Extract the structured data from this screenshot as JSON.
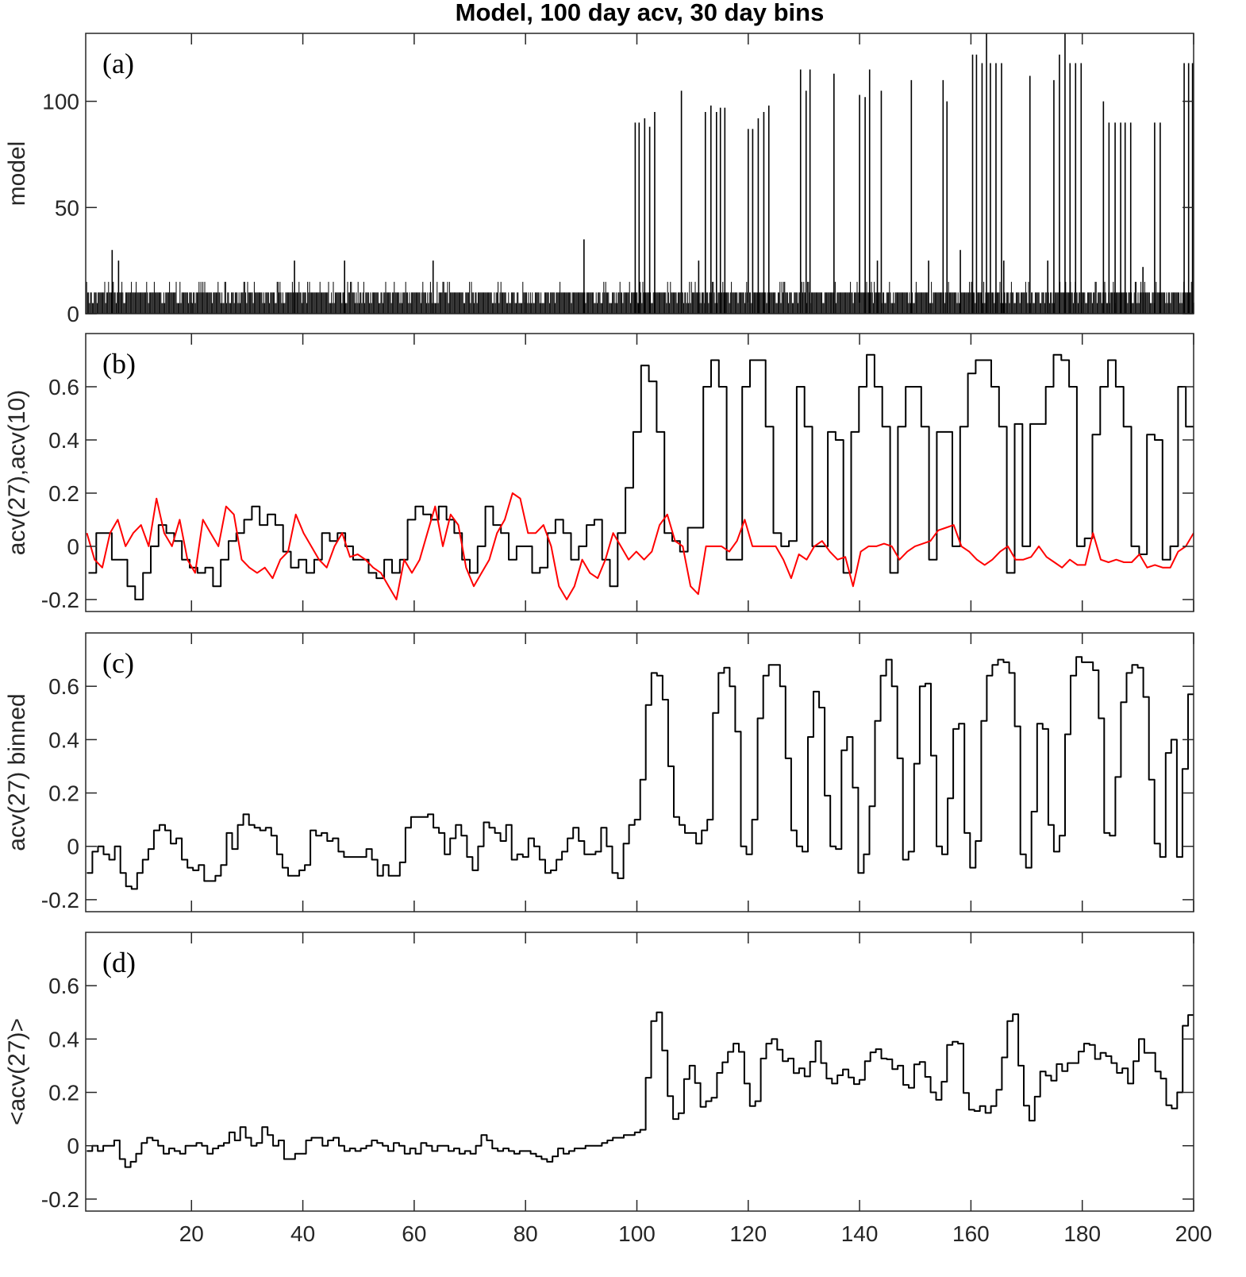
{
  "title": "Model, 100 day acv, 30 day bins",
  "colors": {
    "black": "#000000",
    "red": "#ff0000",
    "axis": "#262626"
  },
  "chart_data": [
    {
      "type": "line",
      "panel_label": "(a)",
      "ylabel": "model",
      "xlim": [
        1,
        200
      ],
      "ylim": [
        0,
        132
      ],
      "yticks": [
        0,
        50,
        100
      ],
      "xticks": [
        20,
        40,
        60,
        80,
        100,
        120,
        140,
        160,
        180,
        200
      ],
      "show_xtick_labels": false,
      "baseline_levels": [
        5,
        10,
        15
      ],
      "spikes": {
        "x": [
          5.75,
          6.9,
          38.5,
          47.5,
          63.4,
          90.5,
          99.7,
          100.4,
          101.4,
          102.3,
          103.2,
          108.0,
          111.1,
          112.3,
          113.3,
          114.3,
          115.0,
          115.8,
          120.0,
          120.8,
          121.8,
          122.8,
          123.7,
          129.4,
          130.4,
          131.1,
          135.4,
          140.0,
          141.0,
          141.8,
          143.2,
          143.9,
          149.3,
          152.4,
          155.0,
          155.7,
          158.1,
          160.3,
          161.0,
          162.0,
          162.8,
          163.5,
          164.5,
          165.5,
          165.9,
          170.6,
          173.8,
          174.9,
          175.9,
          176.9,
          177.8,
          178.8,
          179.8,
          183.8,
          184.8,
          185.9,
          186.9,
          187.7,
          188.7,
          190.9,
          193.0,
          194.0,
          198.3,
          199.1,
          199.8
        ],
        "y": [
          30,
          25,
          25,
          25,
          25,
          35,
          90,
          90,
          92,
          88,
          95,
          105,
          25,
          95,
          98,
          95,
          97,
          97,
          87,
          87,
          92,
          95,
          98,
          115,
          105,
          115,
          113,
          103,
          102,
          115,
          25,
          105,
          110,
          25,
          110,
          100,
          30,
          122,
          122,
          118,
          133,
          118,
          118,
          118,
          25,
          112,
          25,
          110,
          122,
          133,
          118,
          118,
          118,
          100,
          90,
          90,
          90,
          90,
          90,
          22,
          90,
          90,
          118,
          118,
          118
        ]
      }
    },
    {
      "type": "line",
      "panel_label": "(b)",
      "ylabel": "acv(27),acv(10)",
      "xlim": [
        1,
        200
      ],
      "ylim": [
        -0.245,
        0.8
      ],
      "yticks": [
        -0.2,
        0,
        0.2,
        0.4,
        0.6
      ],
      "yticklabels": [
        "-0.2",
        "0",
        "0.2",
        "0.4",
        "0.6"
      ],
      "xticks": [
        20,
        40,
        60,
        80,
        100,
        120,
        140,
        160,
        180,
        200
      ],
      "show_xtick_labels": false,
      "series": [
        {
          "color": "#000000",
          "x_range": [
            1.5,
            200
          ],
          "values": [
            -0.1,
            0.05,
            0.05,
            -0.05,
            -0.05,
            -0.15,
            -0.2,
            -0.1,
            0.0,
            0.08,
            0.05,
            0.02,
            -0.05,
            -0.08,
            -0.1,
            -0.08,
            -0.15,
            -0.05,
            0.02,
            0.05,
            0.1,
            0.15,
            0.08,
            0.12,
            0.08,
            -0.02,
            -0.08,
            -0.05,
            -0.1,
            -0.05,
            0.05,
            0.02,
            0.05,
            0.0,
            -0.05,
            -0.05,
            -0.1,
            -0.12,
            -0.05,
            -0.1,
            -0.05,
            0.1,
            0.15,
            0.12,
            0.1,
            0.15,
            0.1,
            0.05,
            -0.05,
            -0.1,
            0.0,
            0.15,
            0.08,
            0.05,
            -0.05,
            0.0,
            0.0,
            -0.1,
            -0.08,
            0.05,
            0.1,
            0.05,
            -0.05,
            0.0,
            0.08,
            0.1,
            -0.05,
            -0.15,
            0.05,
            0.22,
            0.43,
            0.68,
            0.62,
            0.43,
            0.05,
            0.02,
            -0.02,
            0.07,
            0.07,
            0.6,
            0.7,
            0.6,
            -0.05,
            -0.05,
            0.6,
            0.7,
            0.7,
            0.45,
            0.05,
            0.0,
            0.02,
            0.6,
            0.45,
            0.0,
            0.0,
            0.43,
            0.4,
            -0.1,
            0.43,
            0.6,
            0.72,
            0.6,
            0.45,
            -0.1,
            0.45,
            0.6,
            0.6,
            0.45,
            -0.05,
            0.43,
            0.43,
            0.0,
            0.45,
            0.65,
            0.7,
            0.7,
            0.6,
            0.45,
            -0.1,
            0.46,
            0.0,
            0.46,
            0.46,
            0.6,
            0.72,
            0.7,
            0.6,
            0.0,
            0.03,
            0.42,
            0.6,
            0.7,
            0.6,
            0.45,
            0.0,
            -0.03,
            0.42,
            0.4,
            -0.05,
            0.0,
            0.6,
            0.45
          ]
        },
        {
          "color": "#ff0000",
          "x_range": [
            1.2,
            200
          ],
          "values": [
            0.05,
            -0.05,
            -0.08,
            0.05,
            0.1,
            0.0,
            0.05,
            0.08,
            0.0,
            0.18,
            0.05,
            0.0,
            0.1,
            -0.05,
            -0.1,
            0.1,
            0.05,
            0.0,
            0.15,
            0.12,
            -0.05,
            -0.08,
            -0.1,
            -0.08,
            -0.12,
            -0.05,
            -0.02,
            0.12,
            0.05,
            0.0,
            -0.05,
            -0.08,
            0.0,
            0.05,
            -0.04,
            -0.03,
            -0.05,
            -0.08,
            -0.1,
            -0.15,
            -0.2,
            -0.05,
            -0.1,
            -0.05,
            0.05,
            0.15,
            0.0,
            0.12,
            0.08,
            -0.08,
            -0.15,
            -0.1,
            -0.05,
            0.05,
            0.1,
            0.2,
            0.18,
            0.05,
            0.05,
            0.08,
            0.0,
            -0.15,
            -0.2,
            -0.15,
            -0.05,
            -0.1,
            -0.12,
            -0.05,
            0.05,
            0.0,
            -0.05,
            -0.02,
            -0.05,
            -0.02,
            0.08,
            0.12,
            0.02,
            0.0,
            -0.15,
            -0.18,
            0.0,
            0.0,
            0.0,
            -0.02,
            0.02,
            0.1,
            0.0,
            0.0,
            0.0,
            0.0,
            -0.05,
            -0.12,
            -0.03,
            -0.05,
            0.0,
            0.02,
            -0.02,
            -0.05,
            -0.04,
            -0.15,
            -0.02,
            0.0,
            0.0,
            0.01,
            0.0,
            -0.05,
            -0.02,
            0.0,
            0.01,
            0.02,
            0.06,
            0.07,
            0.08,
            0.0,
            -0.02,
            -0.05,
            -0.07,
            -0.05,
            -0.02,
            0.0,
            -0.05,
            -0.05,
            -0.04,
            0.0,
            -0.04,
            -0.06,
            -0.08,
            -0.05,
            -0.07,
            -0.07,
            0.05,
            -0.05,
            -0.06,
            -0.05,
            -0.06,
            -0.06,
            -0.03,
            -0.08,
            -0.07,
            -0.08,
            -0.08,
            -0.02,
            0.0,
            0.05
          ]
        }
      ]
    },
    {
      "type": "line",
      "panel_label": "(c)",
      "ylabel": "acv(27) binned",
      "xlim": [
        1,
        200
      ],
      "ylim": [
        -0.245,
        0.8
      ],
      "yticks": [
        -0.2,
        0,
        0.2,
        0.4,
        0.6
      ],
      "yticklabels": [
        "-0.2",
        "0",
        "0.2",
        "0.4",
        "0.6"
      ],
      "xticks": [
        20,
        40,
        60,
        80,
        100,
        120,
        140,
        160,
        180,
        200
      ],
      "show_xtick_labels": false,
      "series": [
        {
          "color": "#000000",
          "x_range": [
            1.2,
            200
          ],
          "step": true,
          "values": [
            -0.1,
            -0.02,
            0,
            -0.03,
            -0.05,
            0,
            -0.1,
            -0.15,
            -0.16,
            -0.1,
            -0.05,
            -0.01,
            0.06,
            0.08,
            0.06,
            0.01,
            0.03,
            -0.05,
            -0.08,
            -0.09,
            -0.07,
            -0.13,
            -0.13,
            -0.11,
            -0.07,
            0.05,
            -0.01,
            0.08,
            0.12,
            0.08,
            0.07,
            0.06,
            0.07,
            0.04,
            -0.03,
            -0.08,
            -0.11,
            -0.11,
            -0.09,
            -0.07,
            0.06,
            0.04,
            0.05,
            0.02,
            0.03,
            -0.02,
            -0.04,
            -0.04,
            -0.04,
            -0.04,
            -0.01,
            -0.05,
            -0.11,
            -0.07,
            -0.11,
            -0.11,
            -0.06,
            0.07,
            0.11,
            0.11,
            0.11,
            0.12,
            0.07,
            0.05,
            -0.03,
            0.03,
            0.08,
            0.04,
            -0.04,
            -0.09,
            0.0,
            0.09,
            0.07,
            0.05,
            0.02,
            0.08,
            -0.05,
            -0.03,
            -0.04,
            0.03,
            0.0,
            -0.05,
            -0.1,
            -0.09,
            -0.05,
            -0.02,
            0.03,
            0.07,
            0.02,
            -0.03,
            -0.03,
            -0.02,
            0.07,
            0.0,
            -0.1,
            -0.12,
            0.01,
            0.08,
            0.1,
            0.25,
            0.53,
            0.65,
            0.64,
            0.55,
            0.3,
            0.11,
            0.08,
            0.05,
            0.05,
            0.01,
            0.06,
            0.1,
            0.5,
            0.65,
            0.67,
            0.6,
            0.43,
            0.0,
            -0.03,
            0.1,
            0.48,
            0.64,
            0.68,
            0.68,
            0.6,
            0.33,
            0.06,
            0.0,
            -0.02,
            0.41,
            0.58,
            0.52,
            0.19,
            0.0,
            -0.01,
            0.36,
            0.41,
            0.22,
            -0.1,
            -0.03,
            0.15,
            0.47,
            0.64,
            0.7,
            0.6,
            0.33,
            -0.05,
            -0.02,
            0.31,
            0.6,
            0.61,
            0.34,
            0.0,
            -0.03,
            0.18,
            0.44,
            0.46,
            0.05,
            -0.08,
            0.02,
            0.47,
            0.64,
            0.68,
            0.7,
            0.69,
            0.65,
            0.45,
            -0.03,
            -0.08,
            0.13,
            0.46,
            0.44,
            0.08,
            -0.02,
            0.04,
            0.42,
            0.64,
            0.71,
            0.69,
            0.69,
            0.66,
            0.48,
            0.05,
            0.04,
            0.26,
            0.54,
            0.65,
            0.68,
            0.67,
            0.56,
            0.25,
            0.01,
            -0.04,
            0.35,
            0.4,
            -0.04,
            0.29,
            0.57
          ]
        }
      ]
    },
    {
      "type": "line",
      "panel_label": "(d)",
      "ylabel": "<acv(27)>",
      "xlim": [
        1,
        200
      ],
      "ylim": [
        -0.245,
        0.8
      ],
      "yticks": [
        -0.2,
        0,
        0.2,
        0.4,
        0.6
      ],
      "yticklabels": [
        "-0.2",
        "0",
        "0.2",
        "0.4",
        "0.6"
      ],
      "xticks": [
        20,
        40,
        60,
        80,
        100,
        120,
        140,
        160,
        180,
        200
      ],
      "xticklabels": [
        "20",
        "40",
        "60",
        "80",
        "100",
        "120",
        "140",
        "160",
        "180",
        "200"
      ],
      "show_xtick_labels": true,
      "series": [
        {
          "color": "#000000",
          "x_range": [
            1.2,
            200
          ],
          "step": true,
          "values": [
            -0.02,
            0.0,
            -0.02,
            0.0,
            0.0,
            0.02,
            -0.05,
            -0.08,
            -0.06,
            -0.03,
            0.01,
            0.03,
            0.02,
            0.0,
            -0.03,
            -0.01,
            -0.02,
            -0.03,
            0.0,
            0.0,
            0.01,
            0.0,
            -0.03,
            -0.01,
            0.0,
            0.01,
            0.05,
            0.02,
            0.07,
            0.03,
            0.0,
            0.01,
            0.07,
            0.04,
            0.0,
            0.02,
            -0.05,
            -0.05,
            -0.03,
            -0.03,
            0.02,
            0.03,
            0.03,
            0.0,
            0.02,
            0.03,
            0.0,
            -0.02,
            -0.01,
            -0.02,
            -0.01,
            0.0,
            0.02,
            0.01,
            0.0,
            -0.02,
            0.01,
            0.0,
            -0.03,
            -0.01,
            -0.03,
            0.01,
            0.0,
            -0.02,
            0.0,
            0.0,
            -0.02,
            -0.01,
            -0.03,
            -0.02,
            -0.03,
            0.0,
            0.04,
            0.02,
            -0.01,
            -0.02,
            -0.01,
            -0.02,
            -0.03,
            -0.02,
            -0.02,
            -0.03,
            -0.04,
            -0.05,
            -0.06,
            -0.04,
            -0.01,
            -0.03,
            -0.02,
            -0.01,
            -0.01,
            0.0,
            0.0,
            0.0,
            0.01,
            0.02,
            0.03,
            0.03,
            0.04,
            0.04,
            0.05,
            0.06,
            0.255,
            0.467,
            0.5,
            0.357,
            0.186,
            0.1,
            0.122,
            0.25,
            0.3,
            0.235,
            0.146,
            0.167,
            0.18,
            0.273,
            0.313,
            0.352,
            0.383,
            0.352,
            0.233,
            0.149,
            0.167,
            0.327,
            0.383,
            0.4,
            0.36,
            0.317,
            0.327,
            0.272,
            0.29,
            0.26,
            0.315,
            0.392,
            0.31,
            0.252,
            0.233,
            0.264,
            0.286,
            0.256,
            0.231,
            0.247,
            0.317,
            0.35,
            0.362,
            0.327,
            0.324,
            0.287,
            0.3,
            0.228,
            0.217,
            0.305,
            0.314,
            0.258,
            0.2,
            0.172,
            0.24,
            0.378,
            0.39,
            0.383,
            0.198,
            0.135,
            0.13,
            0.149,
            0.123,
            0.149,
            0.21,
            0.331,
            0.467,
            0.493,
            0.3,
            0.15,
            0.094,
            0.184,
            0.278,
            0.263,
            0.244,
            0.306,
            0.28,
            0.31,
            0.31,
            0.353,
            0.383,
            0.378,
            0.325,
            0.348,
            0.336,
            0.31,
            0.273,
            0.29,
            0.233,
            0.317,
            0.4,
            0.348,
            0.348,
            0.278,
            0.252,
            0.152,
            0.14,
            0.2,
            0.45,
            0.49
          ]
        }
      ]
    }
  ]
}
